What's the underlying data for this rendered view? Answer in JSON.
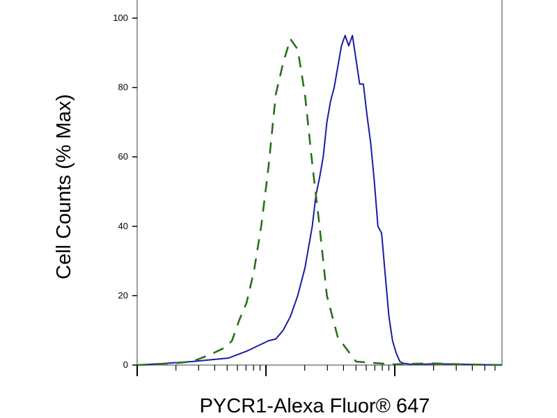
{
  "chart_data": {
    "type": "line",
    "xlabel": "PYCR1-Alexa Fluor® 647",
    "ylabel": "Cell Counts (% Max)",
    "ylim": [
      0,
      100
    ],
    "y_ticks": [
      0,
      20,
      40,
      60,
      80,
      100
    ],
    "x_scale": "log",
    "x_tick_labels_shown": false,
    "grid": false,
    "colors": {
      "positive": "#1a1aa8",
      "control": "#2a6e1e",
      "frame": "#7f7f7f"
    },
    "series": [
      {
        "style": "solid",
        "color": "#1a1aa8",
        "x": [
          0.0,
          0.08,
          0.15,
          0.25,
          0.3,
          0.34,
          0.36,
          0.38,
          0.4,
          0.42,
          0.44,
          0.46,
          0.48,
          0.49,
          0.5,
          0.51,
          0.52,
          0.53,
          0.54,
          0.55,
          0.56,
          0.57,
          0.58,
          0.59,
          0.6,
          0.61,
          0.62,
          0.63,
          0.64,
          0.65,
          0.66,
          0.67,
          0.68,
          0.69,
          0.7,
          0.71,
          0.72,
          0.73,
          0.75,
          0.78,
          0.8,
          0.85,
          0.9,
          1.0
        ],
        "y": [
          0,
          0.5,
          1,
          2,
          4,
          6,
          7,
          7.5,
          10,
          14,
          20,
          28,
          40,
          49,
          54,
          60,
          70,
          76,
          80,
          86,
          92,
          95,
          92,
          95,
          88,
          81,
          81,
          72,
          64,
          53,
          40,
          38,
          26,
          14,
          7,
          3.5,
          1,
          0.5,
          0.2,
          0.2,
          0.3,
          0.3,
          0.2,
          0
        ]
      },
      {
        "style": "dashed",
        "color": "#2a6e1e",
        "x": [
          0.0,
          0.1,
          0.15,
          0.2,
          0.22,
          0.24,
          0.26,
          0.28,
          0.3,
          0.32,
          0.34,
          0.36,
          0.38,
          0.4,
          0.42,
          0.44,
          0.46,
          0.48,
          0.5,
          0.52,
          0.55,
          0.6,
          0.7,
          0.8,
          0.9,
          1.0
        ],
        "y": [
          0,
          0.5,
          1,
          3,
          4,
          5,
          7,
          13,
          18,
          27,
          40,
          57,
          78,
          87,
          94,
          91,
          78,
          58,
          40,
          20,
          8,
          1,
          0.2,
          0.5,
          0.2,
          0
        ]
      }
    ]
  }
}
